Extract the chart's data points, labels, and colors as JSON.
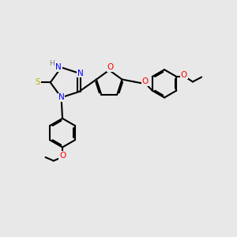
{
  "background_color": "#e8e8e8",
  "bond_color": "#000000",
  "N_color": "#0000ff",
  "O_color": "#ff0000",
  "S_color": "#b8b800",
  "H_color": "#7a7a7a",
  "line_width": 1.5,
  "figsize": [
    3.0,
    3.0
  ],
  "dpi": 100,
  "xlim": [
    0,
    10
  ],
  "ylim": [
    0,
    10
  ]
}
